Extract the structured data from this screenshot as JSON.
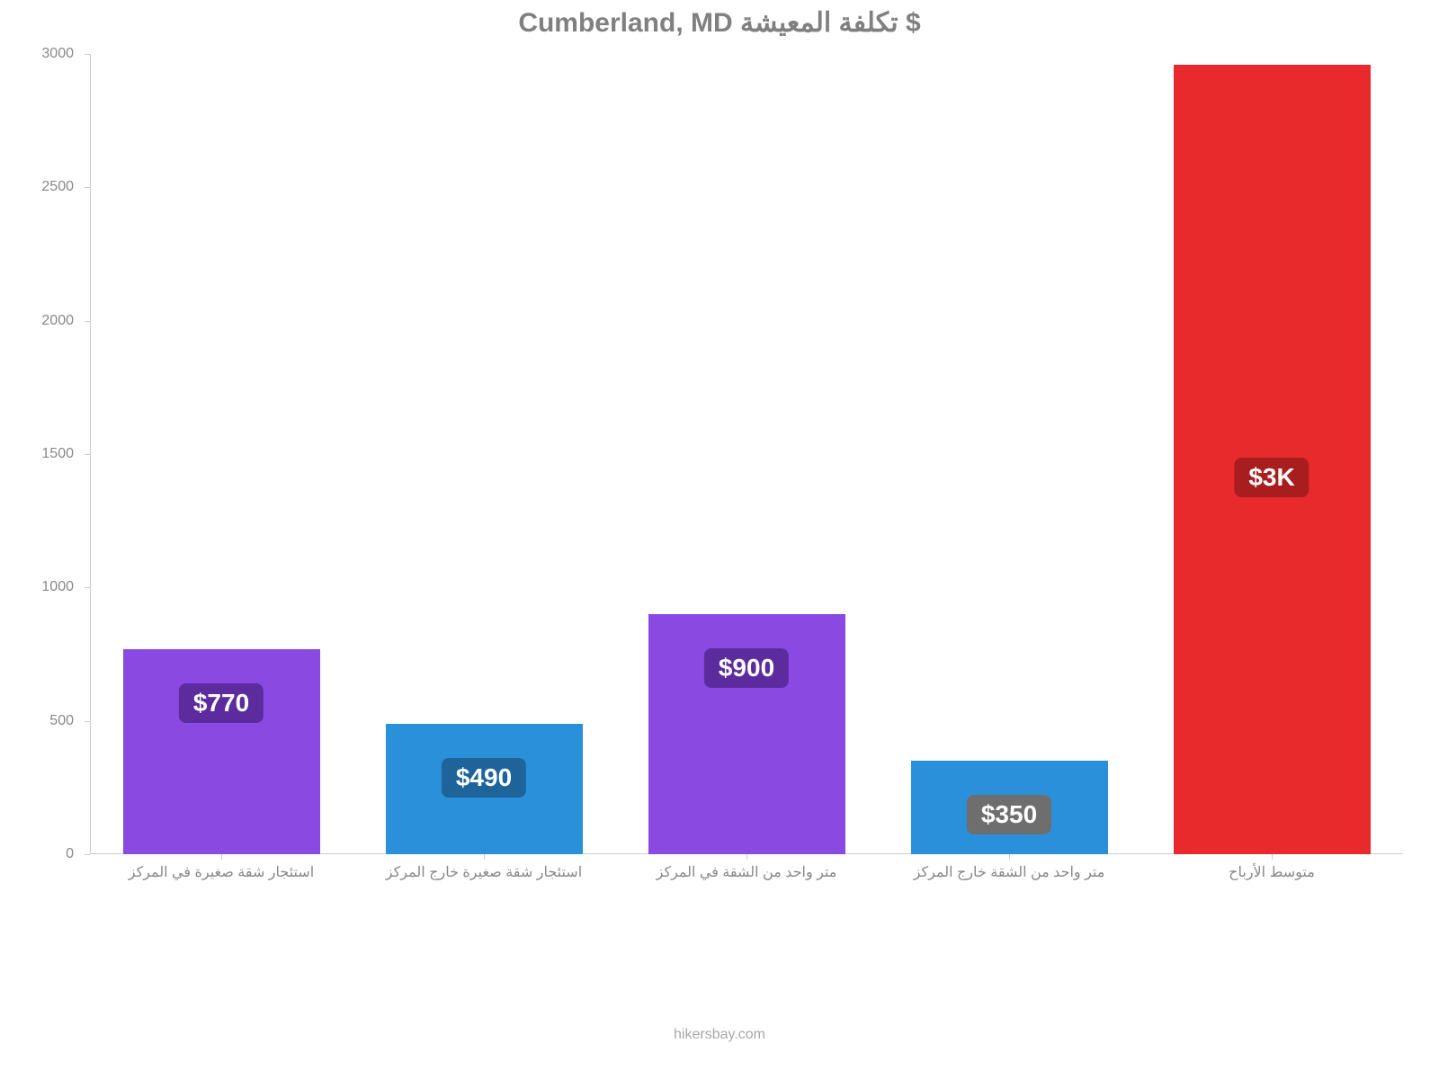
{
  "chart": {
    "type": "bar",
    "title": "Cumberland, MD تكلفة المعيشة $",
    "title_fontsize": 30,
    "title_color": "#808080",
    "background_color": "#ffffff",
    "ylim": [
      0,
      3000
    ],
    "yticks": [
      0,
      500,
      1000,
      1500,
      2000,
      2500,
      3000
    ],
    "ytick_fontsize": 16,
    "ytick_color": "#888888",
    "xtick_fontsize": 16,
    "xtick_color": "#888888",
    "axis_color": "#cccccc",
    "bar_width_ratio": 0.75,
    "categories": [
      "استئجار شقة صغيرة في المركز",
      "استئجار شقة صغيرة خارج المركز",
      "متر واحد من الشقة في المركز",
      "متر واحد من الشقة خارج المركز",
      "متوسط الأرباح"
    ],
    "values": [
      770,
      490,
      900,
      350,
      2960
    ],
    "value_labels": [
      "$770",
      "$490",
      "$900",
      "$350",
      "$3K"
    ],
    "bar_colors": [
      "#8a4ae2",
      "#2b90da",
      "#8a4ae2",
      "#2b90da",
      "#e92a2c"
    ],
    "badge_colors": [
      "#5c2c9e",
      "#1e649a",
      "#5c2c9e",
      "#6e6e6e",
      "#a81e1f"
    ],
    "badge_text_color": "#ffffff",
    "badge_fontsize": 28,
    "credit": "hikersbay.com",
    "credit_color": "#a8a8a8",
    "credit_fontsize": 16
  }
}
